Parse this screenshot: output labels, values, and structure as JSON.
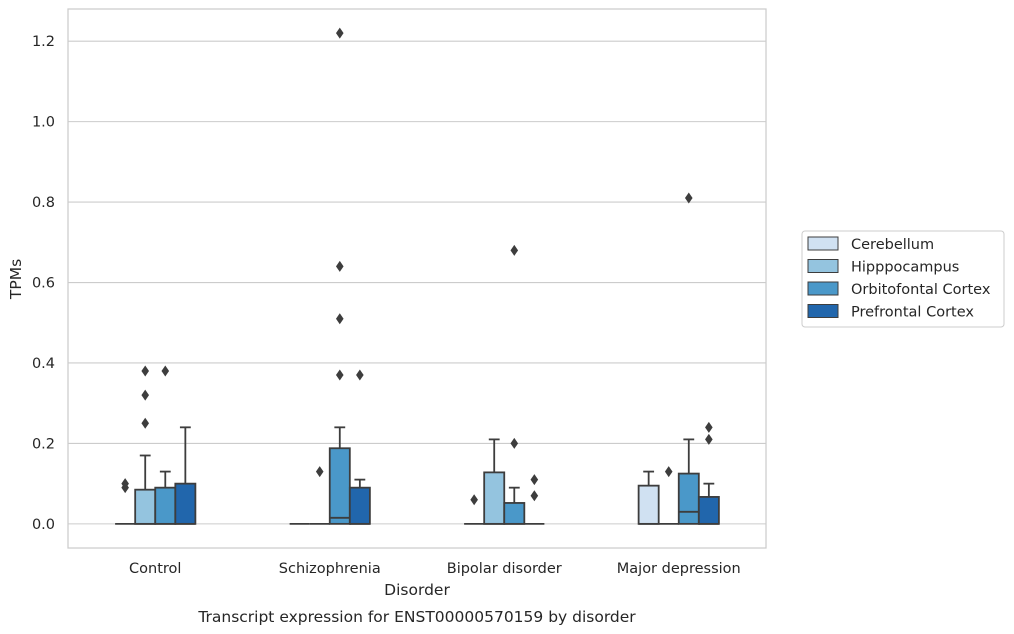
{
  "chart_data": {
    "type": "box",
    "xlabel": "Disorder",
    "ylabel": "TPMs",
    "caption": "Transcript expression for ENST00000570159 by disorder",
    "ylim": [
      -0.06,
      1.28
    ],
    "yticks": [
      0.0,
      0.2,
      0.4,
      0.6,
      0.8,
      1.0,
      1.2
    ],
    "ytick_labels": [
      "0.0",
      "0.2",
      "0.4",
      "0.6",
      "0.8",
      "1.0",
      "1.2"
    ],
    "grid": "horizontal",
    "legend_position": "right",
    "categories": [
      "Control",
      "Schizophrenia",
      "Bipolar disorder",
      "Major depression"
    ],
    "series": [
      {
        "name": "Cerebellum",
        "color": "#d0e1f2",
        "boxes": [
          {
            "q1": 0,
            "median": 0,
            "q3": 0,
            "whisker_low": 0,
            "whisker_high": 0,
            "outliers": [
              0.09,
              0.1
            ]
          },
          {
            "q1": 0,
            "median": 0,
            "q3": 0,
            "whisker_low": 0,
            "whisker_high": 0,
            "outliers": []
          },
          {
            "q1": 0,
            "median": 0,
            "q3": 0,
            "whisker_low": 0,
            "whisker_high": 0,
            "outliers": [
              0.06
            ]
          },
          {
            "q1": 0,
            "median": 0,
            "q3": 0.095,
            "whisker_low": 0,
            "whisker_high": 0.13,
            "outliers": []
          }
        ]
      },
      {
        "name": "Hipppocampus",
        "color": "#94c4df",
        "boxes": [
          {
            "q1": 0,
            "median": 0,
            "q3": 0.085,
            "whisker_low": 0,
            "whisker_high": 0.17,
            "outliers": [
              0.25,
              0.32,
              0.38
            ]
          },
          {
            "q1": 0,
            "median": 0,
            "q3": 0,
            "whisker_low": 0,
            "whisker_high": 0,
            "outliers": [
              0.13
            ]
          },
          {
            "q1": 0,
            "median": 0,
            "q3": 0.128,
            "whisker_low": 0,
            "whisker_high": 0.21,
            "outliers": []
          },
          {
            "q1": 0,
            "median": 0,
            "q3": 0,
            "whisker_low": 0,
            "whisker_high": 0,
            "outliers": [
              0.13
            ]
          }
        ]
      },
      {
        "name": "Orbitofontal Cortex",
        "color": "#4a98c9",
        "boxes": [
          {
            "q1": 0,
            "median": 0,
            "q3": 0.09,
            "whisker_low": 0,
            "whisker_high": 0.13,
            "outliers": [
              0.38
            ]
          },
          {
            "q1": 0,
            "median": 0.015,
            "q3": 0.188,
            "whisker_low": 0,
            "whisker_high": 0.24,
            "outliers": [
              0.37,
              0.51,
              0.64,
              1.22
            ]
          },
          {
            "q1": 0,
            "median": 0,
            "q3": 0.052,
            "whisker_low": 0,
            "whisker_high": 0.09,
            "outliers": [
              0.2,
              0.68
            ]
          },
          {
            "q1": 0,
            "median": 0.03,
            "q3": 0.125,
            "whisker_low": 0,
            "whisker_high": 0.21,
            "outliers": [
              0.81
            ]
          }
        ]
      },
      {
        "name": "Prefrontal Cortex",
        "color": "#2166ac",
        "boxes": [
          {
            "q1": 0,
            "median": 0,
            "q3": 0.1,
            "whisker_low": 0,
            "whisker_high": 0.24,
            "outliers": []
          },
          {
            "q1": 0,
            "median": 0,
            "q3": 0.09,
            "whisker_low": 0,
            "whisker_high": 0.11,
            "outliers": [
              0.37
            ]
          },
          {
            "q1": 0,
            "median": 0,
            "q3": 0,
            "whisker_low": 0,
            "whisker_high": 0,
            "outliers": [
              0.07,
              0.11
            ]
          },
          {
            "q1": 0,
            "median": 0,
            "q3": 0.067,
            "whisker_low": 0,
            "whisker_high": 0.1,
            "outliers": [
              0.21,
              0.24
            ]
          }
        ]
      }
    ]
  }
}
